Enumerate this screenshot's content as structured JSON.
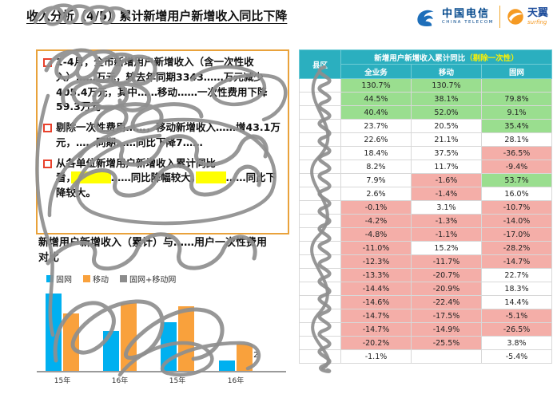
{
  "header": {
    "title": "收入分析（4/5）累计新增用户新增收入同比下降",
    "logos": {
      "telecom_cn": "中国电信",
      "telecom_en": "CHINA TELECOM",
      "wing_cn": "天翼",
      "wing_en": "surfing"
    }
  },
  "notes": {
    "bullets": [
      {
        "text": "1-4月，全市新增用户新增收入（含一次性收入）……万元，较去年同期3343……万元减少405.4万元，其中……移动……一次性费用下降59.3万元"
      },
      {
        "text": "剔除一次性费用……，移动新增收入……增43.1万元，……同期……同比下降7……"
      },
      {
        "segments": [
          {
            "t": "从各单位新增用户新增收入累计同比看，"
          },
          {
            "t": "　　　　",
            "hl": true
          },
          {
            "t": "……同比降幅较大，"
          },
          {
            "t": "　　　",
            "hl": true
          },
          {
            "t": "……同比下降较大。"
          }
        ]
      }
    ]
  },
  "chart_data": {
    "type": "bar",
    "title": "新增用户新增收入（累计）与……用户一次性费用对比",
    "categories": [
      "15年",
      "16年",
      "15年",
      "16年"
    ],
    "series": [
      {
        "name": "固网",
        "key": "fixed",
        "color": "#00B0F0",
        "values": [
          5.4,
          2.8,
          3.4,
          0.7
        ]
      },
      {
        "name": "移动",
        "key": "mobile",
        "color": "#F9A13C",
        "values": [
          4.0,
          4.7,
          4.5,
          1.9
        ]
      }
    ],
    "legend": [
      "固网",
      "移动",
      "固网+移动网"
    ],
    "legend_colors": [
      "#00B0F0",
      "#F9A13C",
      "#8C8C8C"
    ],
    "annotation": "5.2",
    "ylim": [
      0,
      6
    ],
    "grid": false,
    "legend_position": "top"
  },
  "table": {
    "header_col": "县区",
    "header_group": "新增用户新增收入累计同比",
    "header_group_note": "（剔除一次性）",
    "columns": [
      "全业务",
      "移动",
      "固网"
    ],
    "palette": {
      "g": "#9ADE8F",
      "p": "#F4AEA8",
      "w": "#FFFFFF"
    },
    "rows": [
      {
        "name": "",
        "cells": [
          {
            "v": "130.7%",
            "c": "g"
          },
          {
            "v": "130.7%",
            "c": "g"
          },
          {
            "v": "",
            "c": "g"
          }
        ]
      },
      {
        "name": "",
        "cells": [
          {
            "v": "44.5%",
            "c": "g"
          },
          {
            "v": "38.1%",
            "c": "g"
          },
          {
            "v": "79.8%",
            "c": "g"
          }
        ]
      },
      {
        "name": "",
        "cells": [
          {
            "v": "40.4%",
            "c": "g"
          },
          {
            "v": "52.0%",
            "c": "g"
          },
          {
            "v": "9.1%",
            "c": "g"
          }
        ]
      },
      {
        "name": "",
        "cells": [
          {
            "v": "23.7%",
            "c": "w"
          },
          {
            "v": "20.5%",
            "c": "w"
          },
          {
            "v": "35.4%",
            "c": "g"
          }
        ]
      },
      {
        "name": "",
        "cells": [
          {
            "v": "22.6%",
            "c": "w"
          },
          {
            "v": "21.1%",
            "c": "w"
          },
          {
            "v": "28.1%",
            "c": "w"
          }
        ]
      },
      {
        "name": "",
        "cells": [
          {
            "v": "18.4%",
            "c": "w"
          },
          {
            "v": "37.5%",
            "c": "w"
          },
          {
            "v": "-36.5%",
            "c": "p"
          }
        ]
      },
      {
        "name": "",
        "cells": [
          {
            "v": "8.2%",
            "c": "w"
          },
          {
            "v": "11.7%",
            "c": "w"
          },
          {
            "v": "-9.4%",
            "c": "p"
          }
        ]
      },
      {
        "name": "",
        "cells": [
          {
            "v": "7.9%",
            "c": "w"
          },
          {
            "v": "-1.6%",
            "c": "p"
          },
          {
            "v": "53.7%",
            "c": "g"
          }
        ]
      },
      {
        "name": "",
        "cells": [
          {
            "v": "2.6%",
            "c": "w"
          },
          {
            "v": "-1.4%",
            "c": "p"
          },
          {
            "v": "16.0%",
            "c": "w"
          }
        ]
      },
      {
        "name": "",
        "cells": [
          {
            "v": "-0.1%",
            "c": "p"
          },
          {
            "v": "3.1%",
            "c": "w"
          },
          {
            "v": "-10.7%",
            "c": "p"
          }
        ]
      },
      {
        "name": "",
        "cells": [
          {
            "v": "-4.2%",
            "c": "p"
          },
          {
            "v": "-1.3%",
            "c": "p"
          },
          {
            "v": "-14.0%",
            "c": "p"
          }
        ]
      },
      {
        "name": "",
        "cells": [
          {
            "v": "-4.8%",
            "c": "p"
          },
          {
            "v": "-1.1%",
            "c": "p"
          },
          {
            "v": "-17.0%",
            "c": "p"
          }
        ]
      },
      {
        "name": "",
        "cells": [
          {
            "v": "-11.0%",
            "c": "p"
          },
          {
            "v": "15.2%",
            "c": "w"
          },
          {
            "v": "-28.2%",
            "c": "p"
          }
        ]
      },
      {
        "name": "",
        "cells": [
          {
            "v": "-12.3%",
            "c": "p"
          },
          {
            "v": "-11.7%",
            "c": "p"
          },
          {
            "v": "-14.7%",
            "c": "p"
          }
        ]
      },
      {
        "name": "",
        "cells": [
          {
            "v": "-13.3%",
            "c": "p"
          },
          {
            "v": "-20.7%",
            "c": "p"
          },
          {
            "v": "22.7%",
            "c": "w"
          }
        ]
      },
      {
        "name": "",
        "cells": [
          {
            "v": "-14.4%",
            "c": "p"
          },
          {
            "v": "-20.9%",
            "c": "p"
          },
          {
            "v": "18.3%",
            "c": "w"
          }
        ]
      },
      {
        "name": "",
        "cells": [
          {
            "v": "-14.6%",
            "c": "p"
          },
          {
            "v": "-22.4%",
            "c": "p"
          },
          {
            "v": "14.4%",
            "c": "w"
          }
        ]
      },
      {
        "name": "",
        "cells": [
          {
            "v": "-14.7%",
            "c": "p"
          },
          {
            "v": "-17.5%",
            "c": "p"
          },
          {
            "v": "-5.1%",
            "c": "p"
          }
        ]
      },
      {
        "name": "",
        "cells": [
          {
            "v": "-14.7%",
            "c": "p"
          },
          {
            "v": "-14.9%",
            "c": "p"
          },
          {
            "v": "-26.5%",
            "c": "p"
          }
        ]
      },
      {
        "name": "",
        "cells": [
          {
            "v": "-20.2%",
            "c": "p"
          },
          {
            "v": "-25.5%",
            "c": "p"
          },
          {
            "v": "3.8%",
            "c": "w"
          }
        ]
      },
      {
        "name": "",
        "cells": [
          {
            "v": "-1.1%",
            "c": "w"
          },
          {
            "v": "",
            "c": "w"
          },
          {
            "v": "-5.4%",
            "c": "w"
          }
        ]
      }
    ]
  },
  "colors": {
    "header_teal": "#2BAFBF",
    "green_cell": "#9ADE8F",
    "pink_cell": "#F4AEA8",
    "box_border": "#E9A23B",
    "bullet_red": "#E8412C",
    "highlight": "#FFFF00",
    "cyan_bar": "#00B0F0",
    "orange_bar": "#F9A13C",
    "logo_blue": "#00468B",
    "logo_orange": "#F59A23"
  }
}
